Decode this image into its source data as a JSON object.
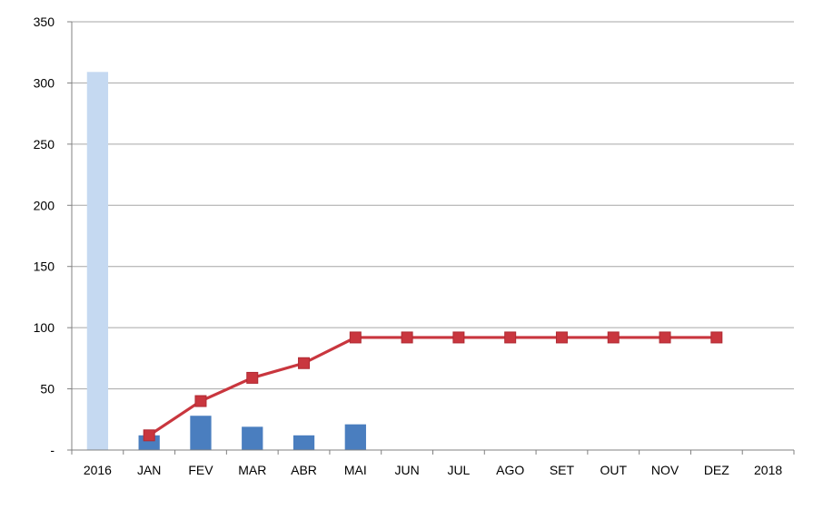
{
  "chart_data": {
    "type": "bar",
    "categories": [
      "2016",
      "JAN",
      "FEV",
      "MAR",
      "ABR",
      "MAI",
      "JUN",
      "JUL",
      "AGO",
      "SET",
      "OUT",
      "NOV",
      "DEZ",
      "2018"
    ],
    "ylim": [
      0,
      350
    ],
    "yticks": [
      0,
      50,
      100,
      150,
      200,
      250,
      300,
      350
    ],
    "ytick_labels": [
      "-",
      "50",
      "100",
      "150",
      "200",
      "250",
      "300",
      "350"
    ],
    "grid": true,
    "legend": "none",
    "series": [
      {
        "kind": "bar",
        "color": "#4a7ebf",
        "highlight_color": "#c5d9f1",
        "values": [
          309,
          12,
          28,
          19,
          12,
          21,
          null,
          null,
          null,
          null,
          null,
          null,
          null,
          null
        ]
      },
      {
        "kind": "line",
        "color": "#c9363e",
        "marker": "square",
        "values": [
          null,
          12,
          40,
          59,
          71,
          92,
          92,
          92,
          92,
          92,
          92,
          92,
          92,
          null
        ]
      }
    ]
  }
}
